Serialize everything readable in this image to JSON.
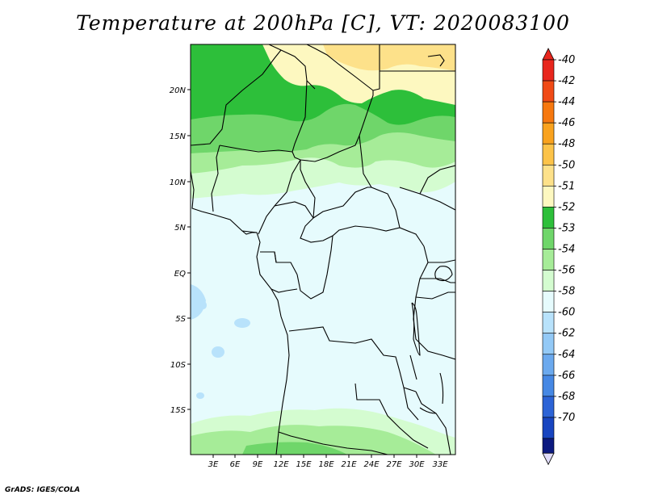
{
  "title": "Temperature at 200hPa [C], VT: 2020083100",
  "footer": "GrADS: IGES/COLA",
  "map": {
    "lon_ticks": [
      "3E",
      "6E",
      "9E",
      "12E",
      "15E",
      "18E",
      "21E",
      "24E",
      "27E",
      "30E",
      "33E"
    ],
    "lat_ticks": [
      "20N",
      "15N",
      "10N",
      "5N",
      "EQ",
      "5S",
      "10S",
      "15S"
    ],
    "lon_range": [
      0,
      35
    ],
    "lat_range": [
      -20,
      25
    ]
  },
  "colorbar": {
    "levels": [
      {
        "label": "-40",
        "color": "#e8261d"
      },
      {
        "label": "-42",
        "color": "#f04a16"
      },
      {
        "label": "-44",
        "color": "#f6780f"
      },
      {
        "label": "-46",
        "color": "#f9a21e"
      },
      {
        "label": "-48",
        "color": "#fcc349"
      },
      {
        "label": "-50",
        "color": "#fde18a"
      },
      {
        "label": "-51",
        "color": "#fdf8c0"
      },
      {
        "label": "-52",
        "color": "#2dbf3a"
      },
      {
        "label": "-53",
        "color": "#6fd66a"
      },
      {
        "label": "-54",
        "color": "#a6ec98"
      },
      {
        "label": "-56",
        "color": "#d4fcd0"
      },
      {
        "label": "-58",
        "color": "#e6fbfd"
      },
      {
        "label": "-60",
        "color": "#b8e2fb"
      },
      {
        "label": "-62",
        "color": "#93c9f6"
      },
      {
        "label": "-64",
        "color": "#6ba9ee"
      },
      {
        "label": "-66",
        "color": "#4688e4"
      },
      {
        "label": "-68",
        "color": "#2c63d6"
      },
      {
        "label": "-70",
        "color": "#1845c0"
      }
    ],
    "bottom_color": "#0c1a80",
    "below_color": "#e0dcfa"
  }
}
